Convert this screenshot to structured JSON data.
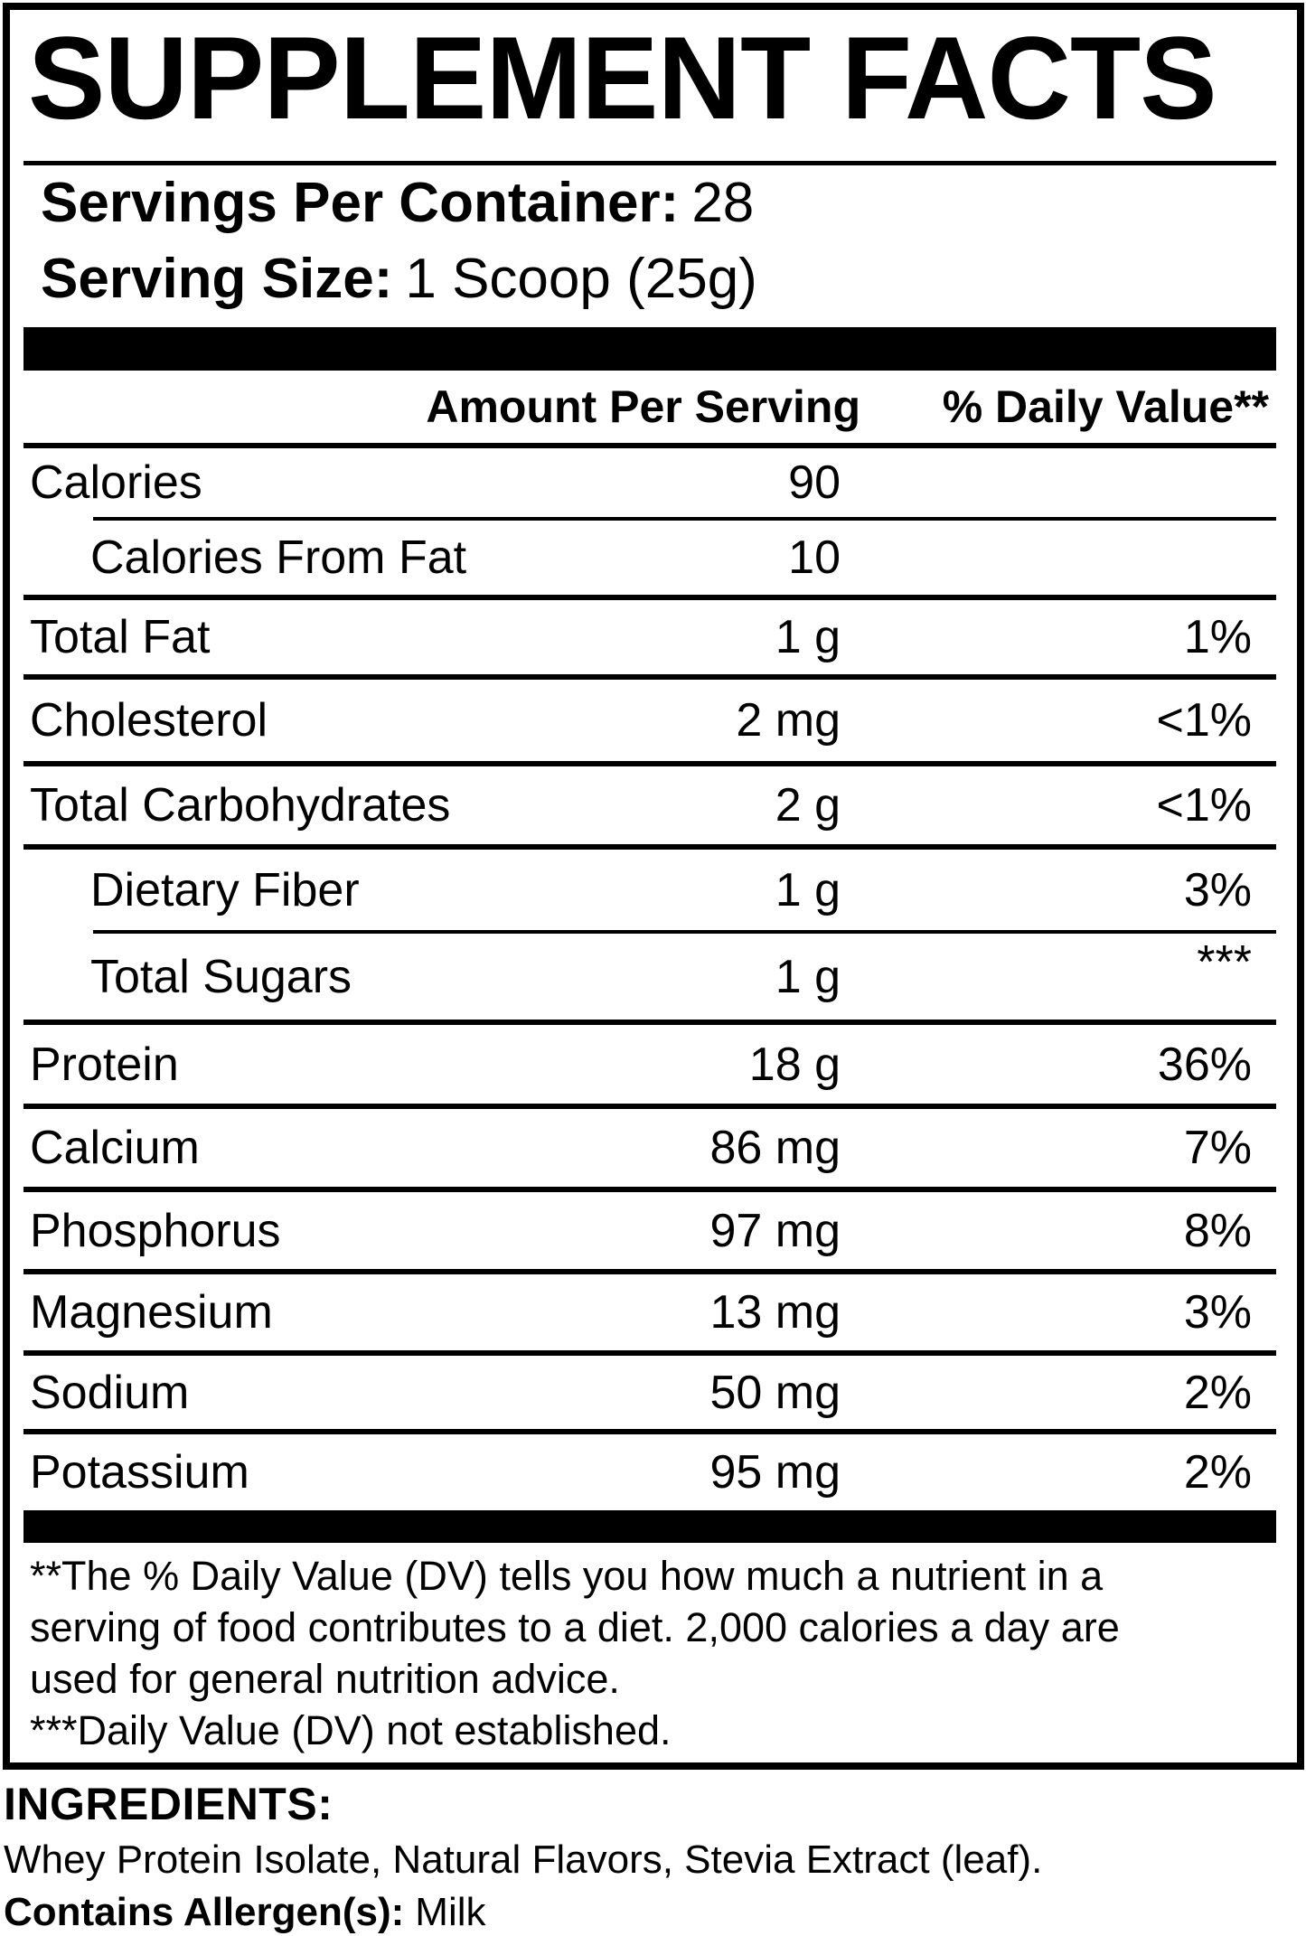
{
  "title": "SUPPLEMENT FACTS",
  "serving_info": {
    "servings_per_container_label": "Servings Per Container:",
    "servings_per_container_value": "28",
    "serving_size_label": "Serving Size:",
    "serving_size_value": "1 Scoop (25g)"
  },
  "table": {
    "header": {
      "amount": "Amount Per Serving",
      "daily_value": "% Daily Value**"
    },
    "rows": [
      {
        "label": "Calories",
        "amount": "90",
        "dv": ""
      },
      {
        "label": "Calories From Fat",
        "amount": "10",
        "dv": ""
      },
      {
        "label": "Total Fat",
        "amount": "1 g",
        "dv": "1%"
      },
      {
        "label": "Cholesterol",
        "amount": "2 mg",
        "dv": "<1%"
      },
      {
        "label": "Total Carbohydrates",
        "amount": "2 g",
        "dv": "<1%"
      },
      {
        "label": "Dietary Fiber",
        "amount": "1 g",
        "dv": "3%"
      },
      {
        "label": "Total Sugars",
        "amount": "1 g",
        "dv": "***"
      },
      {
        "label": "Protein",
        "amount": "18 g",
        "dv": "36%"
      },
      {
        "label": "Calcium",
        "amount": "86 mg",
        "dv": "7%"
      },
      {
        "label": "Phosphorus",
        "amount": "97 mg",
        "dv": "8%"
      },
      {
        "label": "Magnesium",
        "amount": "13 mg",
        "dv": "3%"
      },
      {
        "label": "Sodium",
        "amount": "50 mg",
        "dv": "2%"
      },
      {
        "label": "Potassium",
        "amount": "95 mg",
        "dv": "2%"
      }
    ]
  },
  "footnotes": {
    "line1": "**The % Daily Value (DV) tells you how much a nutrient in a",
    "line2": "serving of food contributes to a diet. 2,000 calories a day are",
    "line3": "used for general nutrition advice.",
    "line4": "***Daily Value (DV) not established."
  },
  "ingredients": {
    "heading": "INGREDIENTS:",
    "list": "Whey Protein Isolate, Natural Flavors, Stevia Extract (leaf).",
    "allergen_label": "Contains Allergen(s):",
    "allergen_value": "Milk"
  },
  "colors": {
    "text": "#000000",
    "background": "#ffffff"
  }
}
